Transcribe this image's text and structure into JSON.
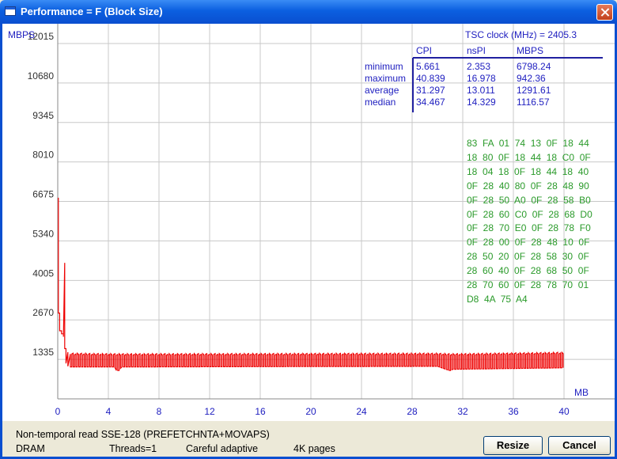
{
  "window": {
    "title": "Performance = F (Block Size)"
  },
  "colors": {
    "series": "#ee0000",
    "grid": "#c8c8c8",
    "axis_text": "#2020c0",
    "hex_text": "#2a9a2a"
  },
  "chart_data": {
    "type": "line",
    "ylabel": "MBPS",
    "xlabel": "MB",
    "xlim": [
      0,
      44
    ],
    "ylim": [
      0,
      12683
    ],
    "x_ticks": [
      "0",
      "4",
      "8",
      "12",
      "16",
      "20",
      "24",
      "28",
      "32",
      "36",
      "40"
    ],
    "y_ticks": [
      "1335",
      "2670",
      "4005",
      "5340",
      "6675",
      "8010",
      "9345",
      "10680",
      "12015"
    ],
    "grid": true,
    "series": [
      {
        "values_summary": "sawtooth between lower and upper",
        "x": [
          0.05,
          0.15,
          0.3,
          0.45,
          0.55,
          0.65,
          0.8,
          1.0,
          4.5,
          4.6,
          4.9,
          5.0,
          30,
          31,
          31.2,
          40
        ],
        "upper": [
          6798,
          2900,
          2300,
          2200,
          4600,
          1700,
          1580,
          1520,
          1500,
          1500,
          1500,
          1500,
          1520,
          1500,
          1500,
          1550
        ],
        "lower": [
          2900,
          2300,
          2200,
          2100,
          1700,
          1200,
          1100,
          1080,
          1080,
          960,
          960,
          1080,
          1100,
          950,
          1000,
          1050
        ]
      }
    ]
  },
  "stats": {
    "tsc_label": "TSC clock (MHz)  = 2405.3",
    "headers": [
      "CPI",
      "nsPI",
      "MBPS"
    ],
    "rows": [
      {
        "label": "minimum",
        "cpi": "5.661",
        "nspi": "2.353",
        "mbps": "6798.24"
      },
      {
        "label": "maximum",
        "cpi": "40.839",
        "nspi": "16.978",
        "mbps": "942.36"
      },
      {
        "label": "average",
        "cpi": "31.297",
        "nspi": "13.011",
        "mbps": "1291.61"
      },
      {
        "label": "median",
        "cpi": "34.467",
        "nspi": "14.329",
        "mbps": "1116.57"
      }
    ]
  },
  "hex_dump": [
    "83  FA  01  74  13  0F  18  44",
    "18  80  0F  18  44  18  C0  0F",
    "18  04  18  0F  18  44  18  40",
    "0F  28  40  80  0F  28  48  90",
    "0F  28  50  A0  0F  28  58  B0",
    "0F  28  60  C0  0F  28  68  D0",
    "0F  28  70  E0  0F  28  78  F0",
    "0F  28  00  0F  28  48  10  0F",
    "28  50  20  0F  28  58  30  0F",
    "28  60  40  0F  28  68  50  0F",
    "28  70  60  0F  28  78  70  01",
    "D8  4A  75  A4"
  ],
  "status": {
    "method": "Non-temporal read SSE-128 (PREFETCHNTA+MOVAPS)",
    "memory": "DRAM",
    "threads": "Threads=1",
    "mode": "Careful adaptive",
    "pages": "4K pages"
  },
  "buttons": {
    "resize": "Resize",
    "cancel": "Cancel"
  }
}
